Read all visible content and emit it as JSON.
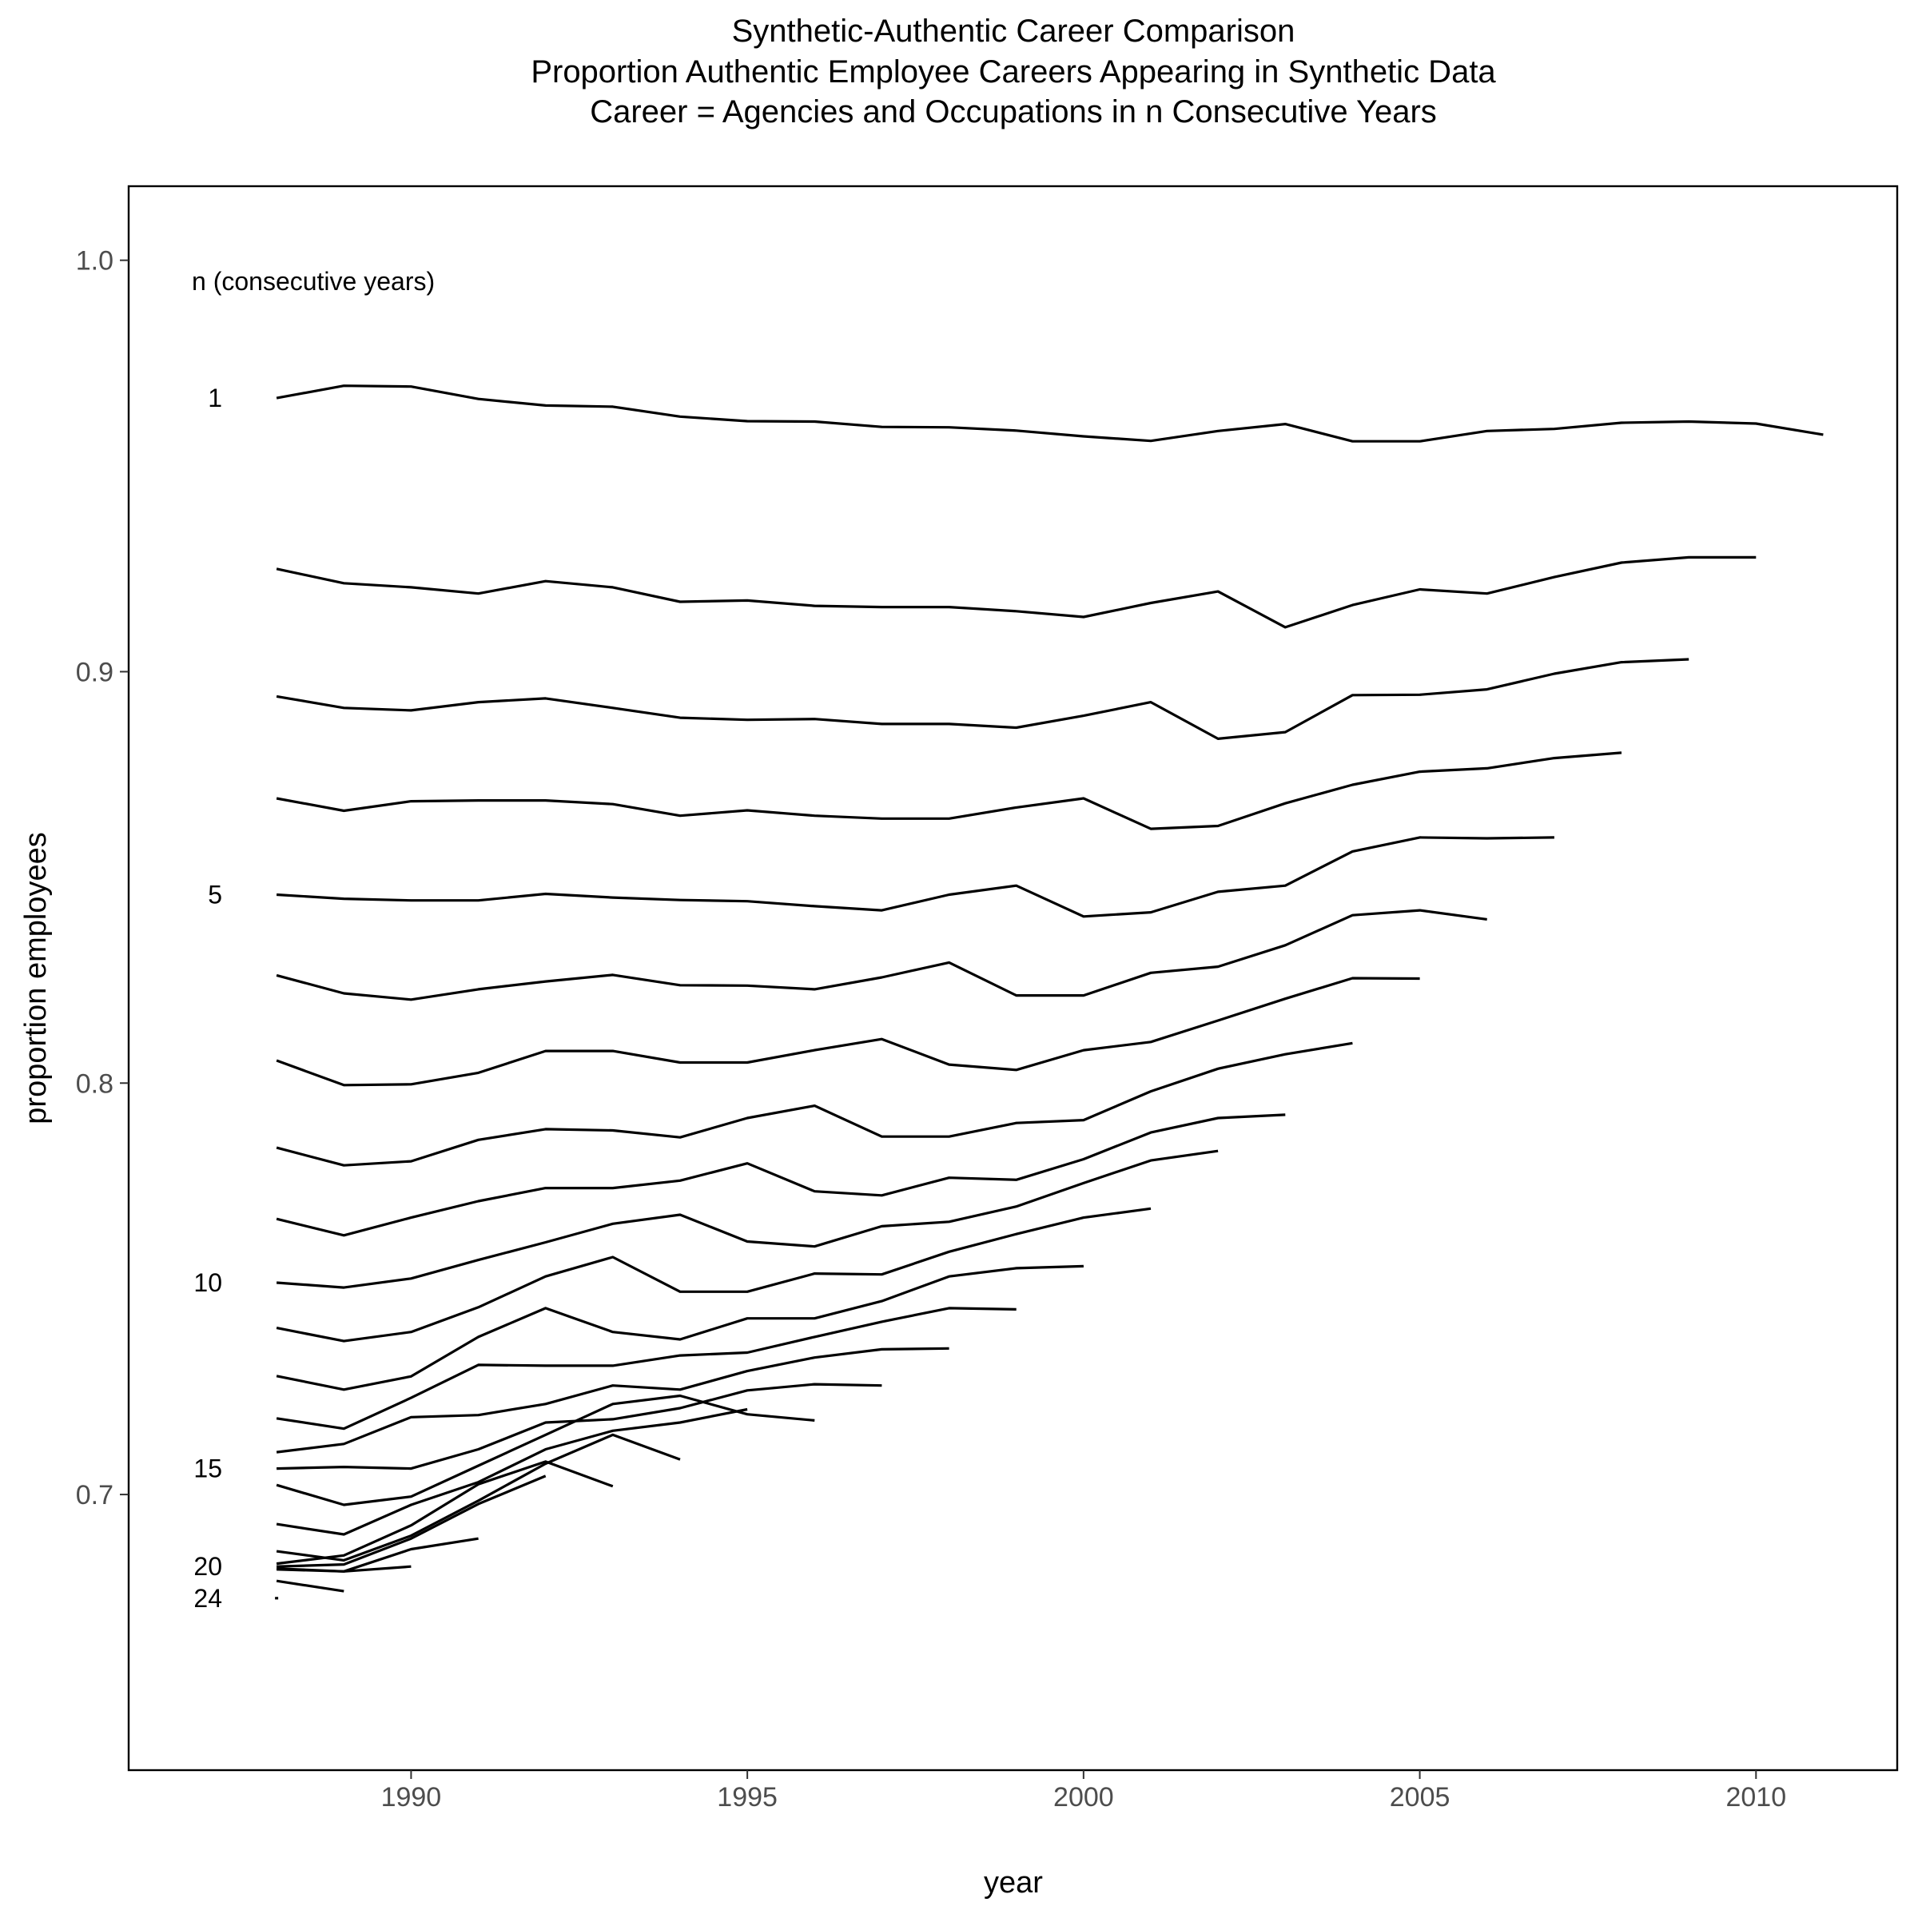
{
  "chart_data": {
    "type": "line",
    "title": "Synthetic-Authentic Career Comparison",
    "subtitle_lines": [
      "Proportion Authentic Employee Careers Appearing in Synthetic Data",
      "Career = Agencies and Occupations in n Consecutive Years"
    ],
    "xlabel": "year",
    "ylabel": "proportion employees",
    "xlim": [
      1985.8,
      2012.1
    ],
    "ylim": [
      0.633,
      1.018
    ],
    "xticks": [
      1990,
      1995,
      2000,
      2005,
      2010
    ],
    "xtick_labels": [
      "1990",
      "1995",
      "2000",
      "2005",
      "2010"
    ],
    "yticks": [
      0.7,
      0.8,
      0.9,
      1.0
    ],
    "ytick_labels": [
      "0.7",
      "0.8",
      "0.9",
      "1.0"
    ],
    "legend_title": "n (consecutive years)",
    "series_labels": [
      {
        "text": "1",
        "n": 1
      },
      {
        "text": "5",
        "n": 5
      },
      {
        "text": "10",
        "n": 10
      },
      {
        "text": "15",
        "n": 15
      },
      {
        "text": "20",
        "n": 20
      },
      {
        "text": "24",
        "n": 24
      }
    ],
    "grid": false,
    "series": [
      {
        "n": 1,
        "x": [
          1988,
          1989,
          1990,
          1991,
          1992,
          1993,
          1994,
          1995,
          1996,
          1997,
          1998,
          1999,
          2000,
          2001,
          2002,
          2003,
          2004,
          2005,
          2006,
          2007,
          2008,
          2009,
          2010,
          2011
        ],
        "values": [
          0.9665,
          0.9695,
          0.9693,
          0.9663,
          0.9647,
          0.9644,
          0.962,
          0.9609,
          0.9608,
          0.9595,
          0.9594,
          0.9586,
          0.9572,
          0.9561,
          0.9585,
          0.9602,
          0.956,
          0.956,
          0.9585,
          0.959,
          0.9605,
          0.9608,
          0.9603,
          0.9576
        ]
      },
      {
        "n": 2,
        "x": [
          1988,
          1989,
          1990,
          1991,
          1992,
          1993,
          1994,
          1995,
          1996,
          1997,
          1998,
          1999,
          2000,
          2001,
          2002,
          2003,
          2004,
          2005,
          2006,
          2007,
          2008,
          2009,
          2010
        ],
        "values": [
          0.925,
          0.9215,
          0.9205,
          0.919,
          0.922,
          0.9205,
          0.917,
          0.9173,
          0.916,
          0.9157,
          0.9157,
          0.9147,
          0.9133,
          0.9167,
          0.9195,
          0.9108,
          0.9162,
          0.92,
          0.919,
          0.923,
          0.9265,
          0.9278,
          0.9278
        ]
      },
      {
        "n": 3,
        "x": [
          1988,
          1989,
          1990,
          1991,
          1992,
          1993,
          1994,
          1995,
          1996,
          1997,
          1998,
          1999,
          2000,
          2001,
          2002,
          2003,
          2004,
          2005,
          2006,
          2007,
          2008,
          2009
        ],
        "values": [
          0.894,
          0.8912,
          0.8906,
          0.8926,
          0.8935,
          0.8912,
          0.8888,
          0.8883,
          0.8885,
          0.8873,
          0.8873,
          0.8864,
          0.8893,
          0.8926,
          0.8837,
          0.8853,
          0.8943,
          0.8944,
          0.8957,
          0.8995,
          0.9023,
          0.903
        ]
      },
      {
        "n": 4,
        "x": [
          1988,
          1989,
          1990,
          1991,
          1992,
          1993,
          1994,
          1995,
          1996,
          1997,
          1998,
          1999,
          2000,
          2001,
          2002,
          2003,
          2004,
          2005,
          2006,
          2007,
          2008
        ],
        "values": [
          0.8692,
          0.8662,
          0.8685,
          0.8687,
          0.8687,
          0.8678,
          0.865,
          0.8663,
          0.865,
          0.8643,
          0.8643,
          0.867,
          0.8692,
          0.8618,
          0.8625,
          0.868,
          0.8725,
          0.8757,
          0.8765,
          0.879,
          0.8803
        ]
      },
      {
        "n": 5,
        "x": [
          1988,
          1989,
          1990,
          1991,
          1992,
          1993,
          1994,
          1995,
          1996,
          1997,
          1998,
          1999,
          2000,
          2001,
          2002,
          2003,
          2004,
          2005,
          2006,
          2007
        ],
        "values": [
          0.8458,
          0.8448,
          0.8444,
          0.8444,
          0.846,
          0.8451,
          0.8445,
          0.8442,
          0.843,
          0.842,
          0.8458,
          0.848,
          0.8405,
          0.8415,
          0.8465,
          0.848,
          0.8563,
          0.8597,
          0.8595,
          0.8597
        ]
      },
      {
        "n": 6,
        "x": [
          1988,
          1989,
          1990,
          1991,
          1992,
          1993,
          1994,
          1995,
          1996,
          1997,
          1998,
          1999,
          2000,
          2001,
          2002,
          2003,
          2004,
          2005,
          2006
        ],
        "values": [
          0.8262,
          0.8218,
          0.8203,
          0.8228,
          0.8247,
          0.8263,
          0.8238,
          0.8237,
          0.8228,
          0.8257,
          0.8293,
          0.8213,
          0.8213,
          0.8268,
          0.8283,
          0.8335,
          0.8408,
          0.842,
          0.8398
        ]
      },
      {
        "n": 7,
        "x": [
          1988,
          1989,
          1990,
          1991,
          1992,
          1993,
          1994,
          1995,
          1996,
          1997,
          1998,
          1999,
          2000,
          2001,
          2002,
          2003,
          2004,
          2005
        ],
        "values": [
          0.8055,
          0.7995,
          0.7997,
          0.8025,
          0.8078,
          0.8078,
          0.805,
          0.805,
          0.808,
          0.8107,
          0.8045,
          0.8032,
          0.808,
          0.81,
          0.8152,
          0.8205,
          0.8255,
          0.8254
        ]
      },
      {
        "n": 8,
        "x": [
          1988,
          1989,
          1990,
          1991,
          1992,
          1993,
          1994,
          1995,
          1996,
          1997,
          1998,
          1999,
          2000,
          2001,
          2002,
          2003,
          2004
        ],
        "values": [
          0.7843,
          0.78,
          0.781,
          0.7862,
          0.7888,
          0.7885,
          0.7868,
          0.7915,
          0.7945,
          0.787,
          0.787,
          0.7903,
          0.791,
          0.798,
          0.8035,
          0.807,
          0.8097
        ]
      },
      {
        "n": 9,
        "x": [
          1988,
          1989,
          1990,
          1991,
          1992,
          1993,
          1994,
          1995,
          1996,
          1997,
          1998,
          1999,
          2000,
          2001,
          2002,
          2003
        ],
        "values": [
          0.767,
          0.763,
          0.7673,
          0.7713,
          0.7745,
          0.7745,
          0.7763,
          0.7805,
          0.7737,
          0.7727,
          0.777,
          0.7765,
          0.7815,
          0.788,
          0.7915,
          0.7923
        ]
      },
      {
        "n": 10,
        "x": [
          1988,
          1989,
          1990,
          1991,
          1992,
          1993,
          1994,
          1995,
          1996,
          1997,
          1998,
          1999,
          2000,
          2001,
          2002
        ],
        "values": [
          0.7515,
          0.7503,
          0.7525,
          0.757,
          0.7613,
          0.7658,
          0.768,
          0.7615,
          0.7603,
          0.7652,
          0.7663,
          0.77,
          0.7757,
          0.7812,
          0.7835
        ]
      },
      {
        "n": 11,
        "x": [
          1988,
          1989,
          1990,
          1991,
          1992,
          1993,
          1994,
          1995,
          1996,
          1997,
          1998,
          1999,
          2000,
          2001
        ],
        "values": [
          0.7405,
          0.7373,
          0.7395,
          0.7455,
          0.753,
          0.7577,
          0.7493,
          0.7493,
          0.7537,
          0.7535,
          0.759,
          0.7633,
          0.7673,
          0.7695
        ]
      },
      {
        "n": 12,
        "x": [
          1988,
          1989,
          1990,
          1991,
          1992,
          1993,
          1994,
          1995,
          1996,
          1997,
          1998,
          1999,
          2000
        ],
        "values": [
          0.7288,
          0.7255,
          0.7287,
          0.7383,
          0.7453,
          0.7395,
          0.7377,
          0.7428,
          0.7428,
          0.747,
          0.753,
          0.755,
          0.7555
        ]
      },
      {
        "n": 13,
        "x": [
          1988,
          1989,
          1990,
          1991,
          1992,
          1993,
          1994,
          1995,
          1996,
          1997,
          1998,
          1999
        ],
        "values": [
          0.7185,
          0.716,
          0.7235,
          0.7315,
          0.7313,
          0.7313,
          0.7338,
          0.7345,
          0.7383,
          0.742,
          0.7453,
          0.745
        ]
      },
      {
        "n": 14,
        "x": [
          1988,
          1989,
          1990,
          1991,
          1992,
          1993,
          1994,
          1995,
          1996,
          1997,
          1998
        ],
        "values": [
          0.7103,
          0.7123,
          0.7188,
          0.7193,
          0.722,
          0.7265,
          0.7255,
          0.73,
          0.7333,
          0.7353,
          0.7355
        ]
      },
      {
        "n": 15,
        "x": [
          1988,
          1989,
          1990,
          1991,
          1992,
          1993,
          1994,
          1995,
          1996,
          1997
        ],
        "values": [
          0.7063,
          0.7067,
          0.7063,
          0.711,
          0.7175,
          0.7183,
          0.721,
          0.7253,
          0.7268,
          0.7265
        ]
      },
      {
        "n": 16,
        "x": [
          1988,
          1989,
          1990,
          1991,
          1992,
          1993,
          1994,
          1995,
          1996
        ],
        "values": [
          0.7023,
          0.6975,
          0.6995,
          0.707,
          0.7145,
          0.722,
          0.724,
          0.7195,
          0.718
        ]
      },
      {
        "n": 17,
        "x": [
          1988,
          1989,
          1990,
          1991,
          1992,
          1993,
          1994,
          1995
        ],
        "values": [
          0.6928,
          0.6903,
          0.6975,
          0.703,
          0.711,
          0.7155,
          0.7175,
          0.7207
        ]
      },
      {
        "n": 18,
        "x": [
          1988,
          1989,
          1990,
          1991,
          1992,
          1993,
          1994
        ],
        "values": [
          0.6862,
          0.684,
          0.69,
          0.6985,
          0.7075,
          0.7145,
          0.7085
        ]
      },
      {
        "n": 19,
        "x": [
          1988,
          1989,
          1990,
          1991,
          1992,
          1993
        ],
        "values": [
          0.6832,
          0.6852,
          0.6925,
          0.7025,
          0.708,
          0.702
        ]
      },
      {
        "n": 20,
        "x": [
          1988,
          1989,
          1990,
          1991,
          1992
        ],
        "values": [
          0.6825,
          0.683,
          0.6893,
          0.6977,
          0.7045
        ]
      },
      {
        "n": 21,
        "x": [
          1988,
          1989,
          1990,
          1991
        ],
        "values": [
          0.682,
          0.6813,
          0.6867,
          0.6893
        ]
      },
      {
        "n": 22,
        "x": [
          1988,
          1989,
          1990
        ],
        "values": [
          0.6818,
          0.6813,
          0.6825
        ]
      },
      {
        "n": 23,
        "x": [
          1988,
          1989
        ],
        "values": [
          0.679,
          0.6765
        ]
      },
      {
        "n": 24,
        "x": [
          1988
        ],
        "values": [
          0.6748
        ]
      }
    ]
  }
}
